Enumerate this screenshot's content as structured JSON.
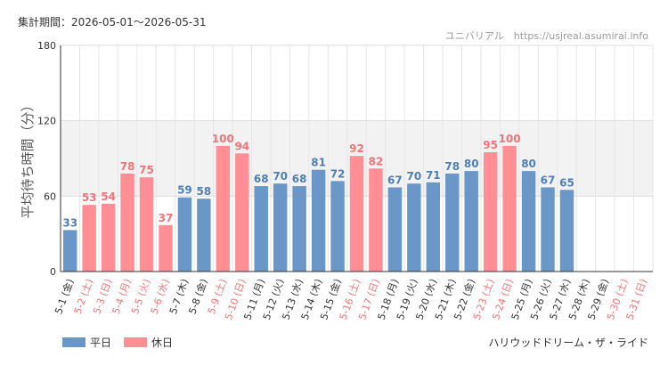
{
  "header": {
    "period": "集計期間：2026-05-01〜2026-05-31",
    "watermark": "ユニバリアル　https://usjreal.asumirai.info"
  },
  "footer": {
    "ride_name": "ハリウッドドリーム・ザ・ライド"
  },
  "chart_data": {
    "type": "bar",
    "ylabel": "平均待ち時間（分）",
    "ylim": [
      0,
      180
    ],
    "yticks": [
      0,
      60,
      120,
      180
    ],
    "highlight_band": [
      60,
      120
    ],
    "categories": [
      "5-1 (金)",
      "5-2 (土)",
      "5-3 (日)",
      "5-4 (月)",
      "5-5 (火)",
      "5-6 (水)",
      "5-7 (木)",
      "5-8 (金)",
      "5-9 (土)",
      "5-10 (日)",
      "5-11 (月)",
      "5-12 (火)",
      "5-13 (水)",
      "5-14 (木)",
      "5-15 (金)",
      "5-16 (土)",
      "5-17 (日)",
      "5-18 (月)",
      "5-19 (火)",
      "5-20 (水)",
      "5-21 (木)",
      "5-22 (金)",
      "5-23 (土)",
      "5-24 (日)",
      "5-25 (月)",
      "5-26 (火)",
      "5-27 (水)",
      "5-28 (木)",
      "5-29 (金)",
      "5-30 (土)",
      "5-31 (日)"
    ],
    "values": [
      33,
      53,
      54,
      78,
      75,
      37,
      59,
      58,
      100,
      94,
      68,
      70,
      68,
      81,
      72,
      92,
      82,
      67,
      70,
      71,
      78,
      80,
      95,
      100,
      80,
      67,
      65,
      null,
      null,
      null,
      null
    ],
    "day_type": [
      "weekday",
      "holiday",
      "holiday",
      "holiday",
      "holiday",
      "holiday",
      "weekday",
      "weekday",
      "holiday",
      "holiday",
      "weekday",
      "weekday",
      "weekday",
      "weekday",
      "weekday",
      "holiday",
      "holiday",
      "weekday",
      "weekday",
      "weekday",
      "weekday",
      "weekday",
      "holiday",
      "holiday",
      "weekday",
      "weekday",
      "weekday",
      "weekday",
      "weekday",
      "holiday",
      "holiday"
    ],
    "series": [
      {
        "name": "平日",
        "key": "weekday",
        "color": "#6a97c8",
        "label_color": "#4f7fb5"
      },
      {
        "name": "休日",
        "key": "holiday",
        "color": "#ff8f94",
        "label_color": "#f07478"
      }
    ],
    "tick_colors": {
      "weekday": "#333333",
      "holiday": "#f07478"
    },
    "grid": true,
    "legend": "bottom-left"
  }
}
